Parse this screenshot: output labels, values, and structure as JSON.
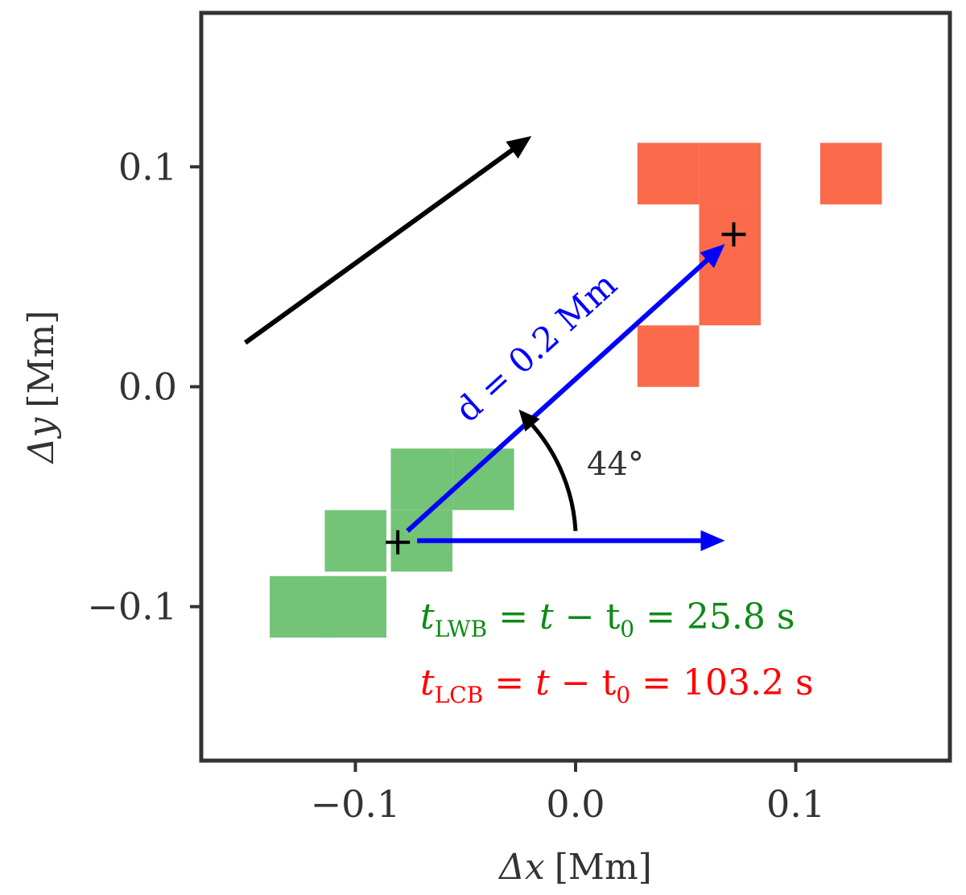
{
  "chart_data": {
    "type": "scatter",
    "xlabel_symbol": "Δx",
    "xlabel_unit": "[Mm]",
    "ylabel_symbol": "Δy",
    "ylabel_unit": "[Mm]",
    "xlim": [
      -0.17,
      0.17
    ],
    "ylim": [
      -0.17,
      0.17
    ],
    "xticks": [
      {
        "value": -0.1,
        "label": "−0.1"
      },
      {
        "value": 0.0,
        "label": "0.0"
      },
      {
        "value": 0.1,
        "label": "0.1"
      }
    ],
    "yticks": [
      {
        "value": 0.1,
        "label": "0.1"
      },
      {
        "value": 0.0,
        "label": "0.0"
      },
      {
        "value": -0.1,
        "label": "−0.1"
      }
    ],
    "pixel_size": 0.0278,
    "lwb_pixels": {
      "name": "LWB",
      "color": "#73c476",
      "cells": [
        [
          -0.1,
          -0.1
        ],
        [
          -0.125,
          -0.1
        ],
        [
          -0.1,
          -0.07
        ],
        [
          -0.07,
          -0.07
        ],
        [
          -0.07,
          -0.042
        ],
        [
          -0.042,
          -0.042
        ]
      ]
    },
    "lcb_pixels": {
      "name": "LCB",
      "color": "#fb6a4a",
      "cells": [
        [
          0.042,
          0.097
        ],
        [
          0.07,
          0.097
        ],
        [
          0.07,
          0.069
        ],
        [
          0.07,
          0.042
        ],
        [
          0.042,
          0.014
        ],
        [
          0.125,
          0.097
        ]
      ]
    },
    "centroids": [
      {
        "name": "LWB centroid",
        "x": -0.08,
        "y": -0.07
      },
      {
        "name": "LCB centroid",
        "x": 0.07,
        "y": 0.07
      }
    ],
    "reference_arrow": {
      "name": "motion direction",
      "x0": -0.15,
      "y0": 0.02,
      "x1": -0.02,
      "y1": 0.114
    },
    "displacement": {
      "distance_label": "d = 0.2 Mm",
      "angle_label": "44°",
      "angle_deg": 44,
      "horizontal_arrow_end_x": 0.07
    },
    "annotations": [
      {
        "symbol": "t",
        "subscript": "LWB",
        "equation": " = ",
        "t": "t",
        "minus": " − t",
        "t0_sub": "0",
        "value": " = 25.8 s",
        "color": "#0e8a16"
      },
      {
        "symbol": "t",
        "subscript": "LCB",
        "equation": " = ",
        "t": "t",
        "minus": " − t",
        "t0_sub": "0",
        "value": " = 103.2 s",
        "color": "#ff0000"
      }
    ]
  }
}
